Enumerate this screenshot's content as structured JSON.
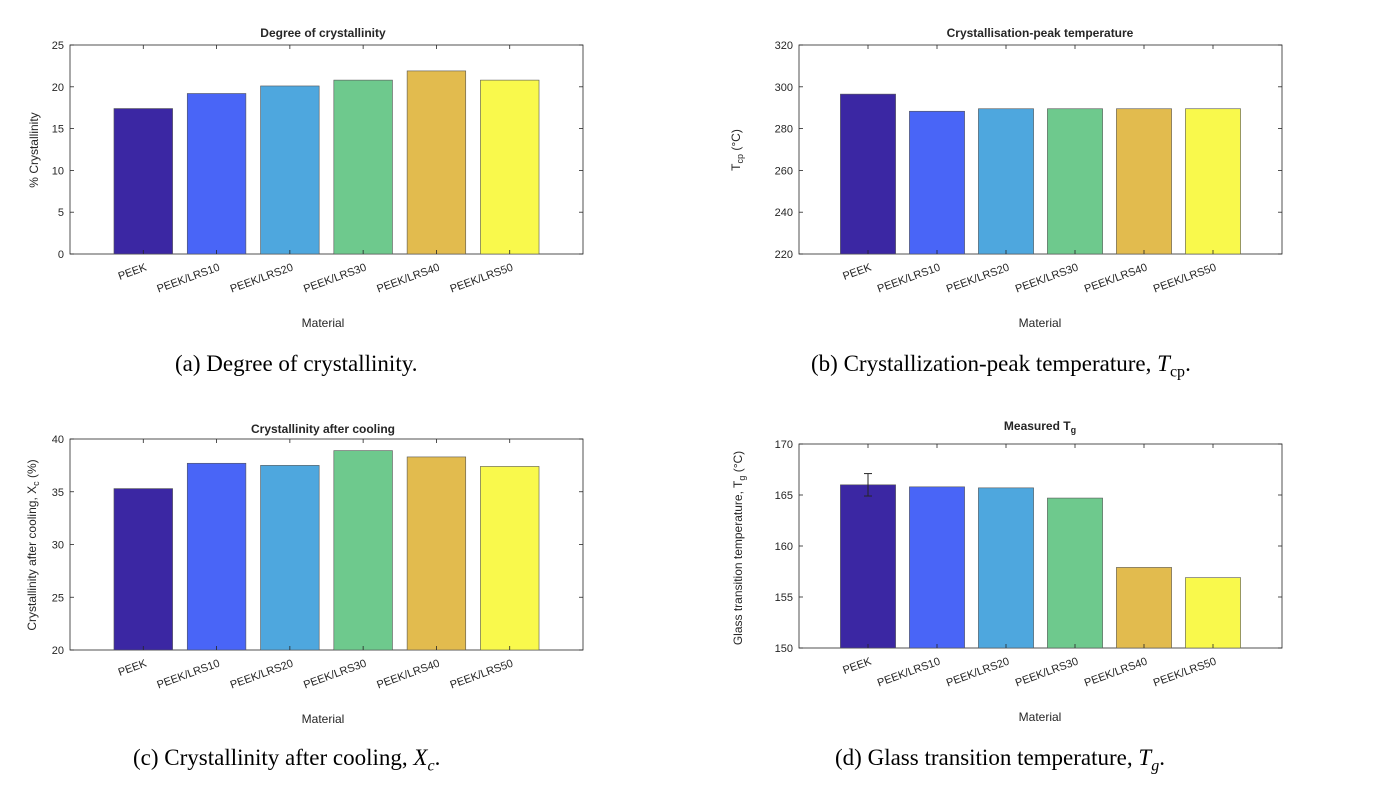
{
  "colors": [
    "#3b27a3",
    "#4965f7",
    "#4ea7de",
    "#6ec98d",
    "#e2bb4e",
    "#f9f94c"
  ],
  "captions": {
    "a": {
      "label": "(a)",
      "text": "Degree of crystallinity."
    },
    "b": {
      "label": "(b)",
      "text": "Crystallization-peak temperature,",
      "sym": "T",
      "sub": "cp",
      "end": "."
    },
    "c": {
      "label": "(c)",
      "text": "Crystallinity after cooling,",
      "sym": "X",
      "sub": "c",
      "end": "."
    },
    "d": {
      "label": "(d)",
      "text": "Glass transition temperature,",
      "sym": "T",
      "sub": "g",
      "end": "."
    }
  },
  "chart_data": [
    {
      "type": "bar",
      "title": "Degree of crystallinity",
      "xlabel": "Material",
      "ylabel": "% Crystallinity",
      "categories": [
        "PEEK",
        "PEEK/LRS10",
        "PEEK/LRS20",
        "PEEK/LRS30",
        "PEEK/LRS40",
        "PEEK/LRS50"
      ],
      "values": [
        17.4,
        19.2,
        20.1,
        20.8,
        21.9,
        20.8
      ],
      "ylim": [
        0,
        25
      ],
      "yticks": [
        0,
        5,
        10,
        15,
        20,
        25
      ]
    },
    {
      "type": "bar",
      "title": "Crystallisation-peak temperature",
      "xlabel": "Material",
      "ylabel_main": "T",
      "ylabel_sub": "cp",
      "ylabel_tail": " (°C)",
      "categories": [
        "PEEK",
        "PEEK/LRS10",
        "PEEK/LRS20",
        "PEEK/LRS30",
        "PEEK/LRS40",
        "PEEK/LRS50"
      ],
      "values": [
        296.5,
        288.3,
        289.5,
        289.5,
        289.5,
        289.5
      ],
      "ylim": [
        220,
        320
      ],
      "yticks": [
        220,
        240,
        260,
        280,
        300,
        320
      ]
    },
    {
      "type": "bar",
      "title": "Crystallinity after cooling",
      "xlabel": "Material",
      "ylabel_main": "Crystallinity after cooling, X",
      "ylabel_sub": "c",
      "ylabel_tail": " (%)",
      "categories": [
        "PEEK",
        "PEEK/LRS10",
        "PEEK/LRS20",
        "PEEK/LRS30",
        "PEEK/LRS40",
        "PEEK/LRS50"
      ],
      "values": [
        35.3,
        37.7,
        37.5,
        38.9,
        38.3,
        37.4
      ],
      "ylim": [
        20,
        40
      ],
      "yticks": [
        20,
        25,
        30,
        35,
        40
      ]
    },
    {
      "type": "bar",
      "title_main": "Measured T",
      "title_sub": "g",
      "xlabel": "Material",
      "ylabel_main": "Glass transition temperature, T",
      "ylabel_sub": "g",
      "ylabel_tail": " (°C)",
      "categories": [
        "PEEK",
        "PEEK/LRS10",
        "PEEK/LRS20",
        "PEEK/LRS30",
        "PEEK/LRS40",
        "PEEK/LRS50"
      ],
      "values": [
        166.0,
        165.8,
        165.7,
        164.7,
        157.9,
        156.9
      ],
      "error": [
        1.1,
        0,
        0,
        0,
        0,
        0
      ],
      "ylim": [
        150,
        170
      ],
      "yticks": [
        150,
        155,
        160,
        165,
        170
      ]
    }
  ]
}
